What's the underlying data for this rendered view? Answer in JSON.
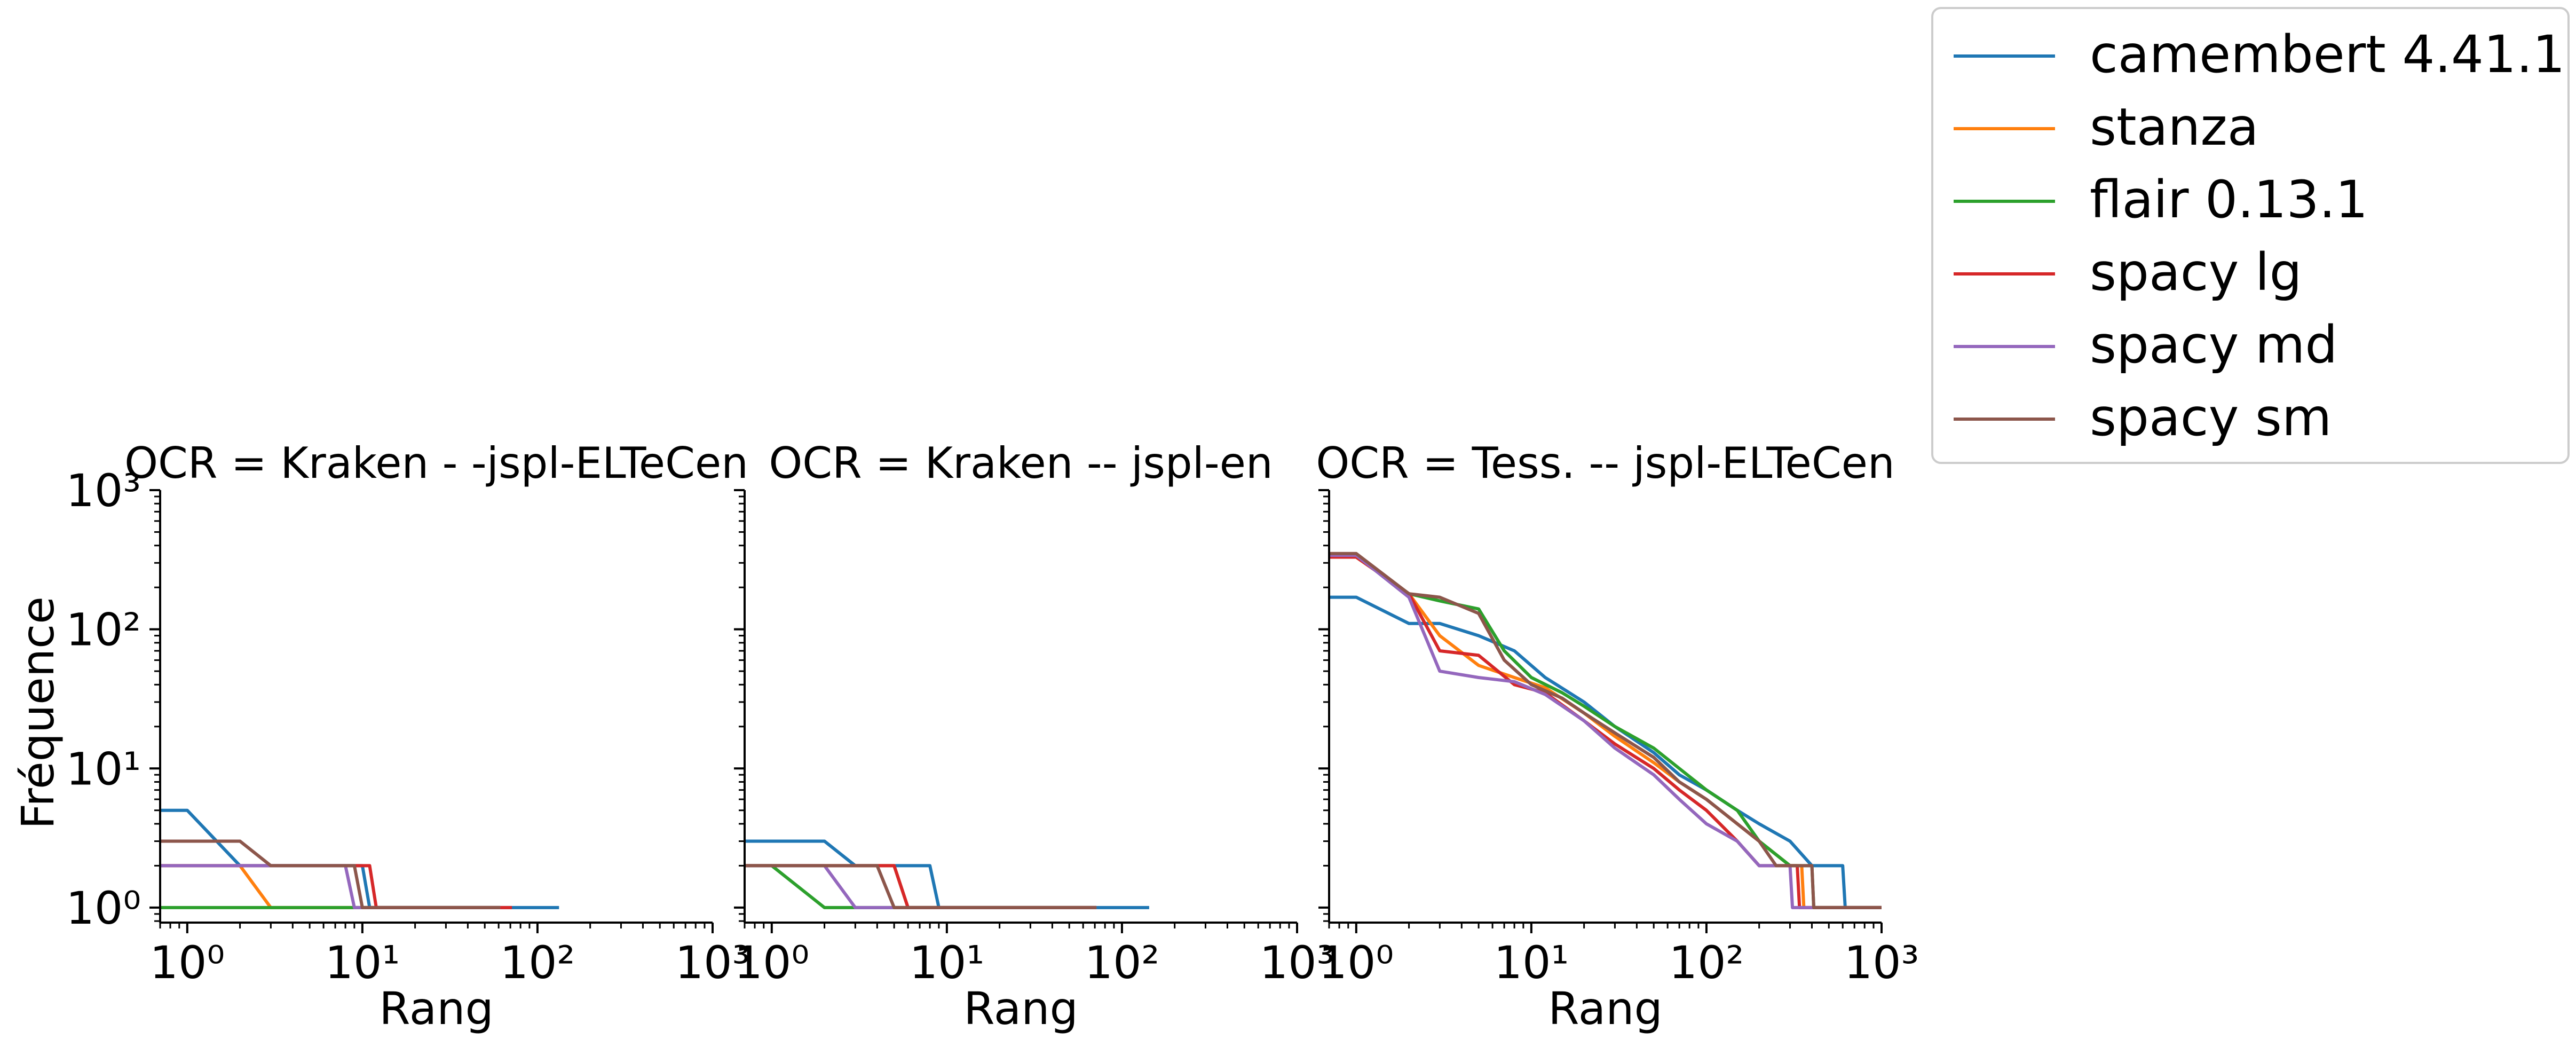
{
  "legend": {
    "placement": "top-right",
    "entries": [
      {
        "name": "camembert 4.41.1",
        "color": "#1f77b4"
      },
      {
        "name": "stanza",
        "color": "#ff7f0e"
      },
      {
        "name": "flair 0.13.1",
        "color": "#2ca02c"
      },
      {
        "name": "spacy lg",
        "color": "#d62728"
      },
      {
        "name": "spacy md",
        "color": "#9467bd"
      },
      {
        "name": "spacy sm",
        "color": "#8c564b"
      }
    ]
  },
  "shared": {
    "ylabel": "Fréquence",
    "xlabel": "Rang",
    "x_ticks": [
      1,
      10,
      100,
      1000
    ],
    "y_ticks": [
      1,
      10,
      100,
      1000
    ],
    "tick_labels": [
      "10⁰",
      "10¹",
      "10²",
      "10³"
    ]
  },
  "chart_data": [
    {
      "type": "line",
      "title": "OCR = Kraken - -jspl-ELTeCen",
      "xlabel": "Rang",
      "ylabel": "Fréquence",
      "x_scale": "log",
      "y_scale": "log",
      "xlim": [
        0.7,
        1000
      ],
      "ylim": [
        0.78,
        1000
      ],
      "grid": false,
      "series": [
        {
          "name": "camembert 4.41.1",
          "color": "#1f77b4",
          "points": [
            [
              0.7,
              5
            ],
            [
              1,
              5
            ],
            [
              2,
              2
            ],
            [
              3,
              2
            ],
            [
              10,
              2
            ],
            [
              11,
              1
            ],
            [
              130,
              1
            ]
          ]
        },
        {
          "name": "stanza",
          "color": "#ff7f0e",
          "points": [
            [
              0.7,
              2
            ],
            [
              2,
              2
            ],
            [
              3,
              1
            ],
            [
              60,
              1
            ]
          ]
        },
        {
          "name": "flair 0.13.1",
          "color": "#2ca02c",
          "points": [
            [
              0.7,
              1
            ],
            [
              60,
              1
            ]
          ]
        },
        {
          "name": "spacy lg",
          "color": "#d62728",
          "points": [
            [
              0.7,
              2
            ],
            [
              11,
              2
            ],
            [
              12,
              1
            ],
            [
              70,
              1
            ]
          ]
        },
        {
          "name": "spacy md",
          "color": "#9467bd",
          "points": [
            [
              0.7,
              2
            ],
            [
              8,
              2
            ],
            [
              9,
              1
            ],
            [
              60,
              1
            ]
          ]
        },
        {
          "name": "spacy sm",
          "color": "#8c564b",
          "points": [
            [
              0.7,
              3
            ],
            [
              2,
              3
            ],
            [
              3,
              2
            ],
            [
              9,
              2
            ],
            [
              10,
              1
            ],
            [
              60,
              1
            ]
          ]
        }
      ]
    },
    {
      "type": "line",
      "title": "OCR = Kraken -- jspl-en",
      "xlabel": "Rang",
      "ylabel": "",
      "x_scale": "log",
      "y_scale": "log",
      "xlim": [
        0.7,
        1000
      ],
      "ylim": [
        0.78,
        1000
      ],
      "grid": false,
      "series": [
        {
          "name": "camembert 4.41.1",
          "color": "#1f77b4",
          "points": [
            [
              0.7,
              3
            ],
            [
              2,
              3
            ],
            [
              3,
              2
            ],
            [
              8,
              2
            ],
            [
              9,
              1
            ],
            [
              140,
              1
            ]
          ]
        },
        {
          "name": "stanza",
          "color": "#ff7f0e",
          "points": [
            [
              0.7,
              2
            ],
            [
              5,
              2
            ],
            [
              6,
              1
            ],
            [
              70,
              1
            ]
          ]
        },
        {
          "name": "flair 0.13.1",
          "color": "#2ca02c",
          "points": [
            [
              0.7,
              2
            ],
            [
              1,
              2
            ],
            [
              2,
              1
            ],
            [
              70,
              1
            ]
          ]
        },
        {
          "name": "spacy lg",
          "color": "#d62728",
          "points": [
            [
              0.7,
              2
            ],
            [
              5,
              2
            ],
            [
              6,
              1
            ],
            [
              70,
              1
            ]
          ]
        },
        {
          "name": "spacy md",
          "color": "#9467bd",
          "points": [
            [
              0.7,
              2
            ],
            [
              2,
              2
            ],
            [
              3,
              1
            ],
            [
              70,
              1
            ]
          ]
        },
        {
          "name": "spacy sm",
          "color": "#8c564b",
          "points": [
            [
              0.7,
              2
            ],
            [
              4,
              2
            ],
            [
              5,
              1
            ],
            [
              70,
              1
            ]
          ]
        }
      ]
    },
    {
      "type": "line",
      "title": "OCR = Tess. -- jspl-ELTeCen",
      "xlabel": "Rang",
      "ylabel": "",
      "x_scale": "log",
      "y_scale": "log",
      "xlim": [
        0.7,
        1000
      ],
      "ylim": [
        0.78,
        1000
      ],
      "grid": false,
      "series": [
        {
          "name": "camembert 4.41.1",
          "color": "#1f77b4",
          "points": [
            [
              0.7,
              170
            ],
            [
              1,
              170
            ],
            [
              2,
              110
            ],
            [
              3,
              110
            ],
            [
              5,
              90
            ],
            [
              8,
              70
            ],
            [
              12,
              45
            ],
            [
              20,
              30
            ],
            [
              30,
              20
            ],
            [
              50,
              13
            ],
            [
              70,
              9
            ],
            [
              100,
              7
            ],
            [
              150,
              5
            ],
            [
              200,
              4
            ],
            [
              300,
              3
            ],
            [
              400,
              2
            ],
            [
              600,
              2
            ],
            [
              620,
              1
            ],
            [
              1000,
              1
            ]
          ]
        },
        {
          "name": "stanza",
          "color": "#ff7f0e",
          "points": [
            [
              0.7,
              330
            ],
            [
              1,
              330
            ],
            [
              2,
              180
            ],
            [
              3,
              90
            ],
            [
              5,
              55
            ],
            [
              8,
              45
            ],
            [
              12,
              38
            ],
            [
              20,
              25
            ],
            [
              30,
              17
            ],
            [
              50,
              11
            ],
            [
              70,
              8
            ],
            [
              100,
              6
            ],
            [
              150,
              4
            ],
            [
              200,
              3
            ],
            [
              300,
              2
            ],
            [
              350,
              2
            ],
            [
              360,
              1
            ],
            [
              1000,
              1
            ]
          ]
        },
        {
          "name": "flair 0.13.1",
          "color": "#2ca02c",
          "points": [
            [
              0.7,
              340
            ],
            [
              1,
              340
            ],
            [
              2,
              180
            ],
            [
              3,
              160
            ],
            [
              5,
              140
            ],
            [
              7,
              70
            ],
            [
              10,
              45
            ],
            [
              15,
              35
            ],
            [
              20,
              28
            ],
            [
              30,
              20
            ],
            [
              50,
              14
            ],
            [
              70,
              10
            ],
            [
              100,
              7
            ],
            [
              150,
              5
            ],
            [
              200,
              3
            ],
            [
              300,
              2
            ],
            [
              400,
              2
            ],
            [
              410,
              1
            ],
            [
              1000,
              1
            ]
          ]
        },
        {
          "name": "spacy lg",
          "color": "#d62728",
          "points": [
            [
              0.7,
              330
            ],
            [
              1,
              330
            ],
            [
              2,
              180
            ],
            [
              3,
              70
            ],
            [
              5,
              65
            ],
            [
              8,
              40
            ],
            [
              12,
              35
            ],
            [
              20,
              22
            ],
            [
              30,
              15
            ],
            [
              50,
              10
            ],
            [
              70,
              7
            ],
            [
              100,
              5
            ],
            [
              150,
              3
            ],
            [
              200,
              2
            ],
            [
              330,
              2
            ],
            [
              340,
              1
            ],
            [
              1000,
              1
            ]
          ]
        },
        {
          "name": "spacy md",
          "color": "#9467bd",
          "points": [
            [
              0.7,
              340
            ],
            [
              1,
              340
            ],
            [
              2,
              170
            ],
            [
              3,
              50
            ],
            [
              5,
              45
            ],
            [
              8,
              42
            ],
            [
              12,
              34
            ],
            [
              20,
              22
            ],
            [
              30,
              14
            ],
            [
              50,
              9
            ],
            [
              70,
              6
            ],
            [
              100,
              4
            ],
            [
              150,
              3
            ],
            [
              200,
              2
            ],
            [
              300,
              2
            ],
            [
              310,
              1
            ],
            [
              1000,
              1
            ]
          ]
        },
        {
          "name": "spacy sm",
          "color": "#8c564b",
          "points": [
            [
              0.7,
              350
            ],
            [
              1,
              350
            ],
            [
              2,
              180
            ],
            [
              3,
              170
            ],
            [
              5,
              130
            ],
            [
              7,
              60
            ],
            [
              10,
              40
            ],
            [
              15,
              32
            ],
            [
              20,
              25
            ],
            [
              30,
              18
            ],
            [
              50,
              12
            ],
            [
              70,
              8
            ],
            [
              100,
              6
            ],
            [
              150,
              4
            ],
            [
              200,
              3
            ],
            [
              250,
              2
            ],
            [
              400,
              2
            ],
            [
              410,
              1
            ],
            [
              1000,
              1
            ]
          ]
        }
      ]
    }
  ]
}
